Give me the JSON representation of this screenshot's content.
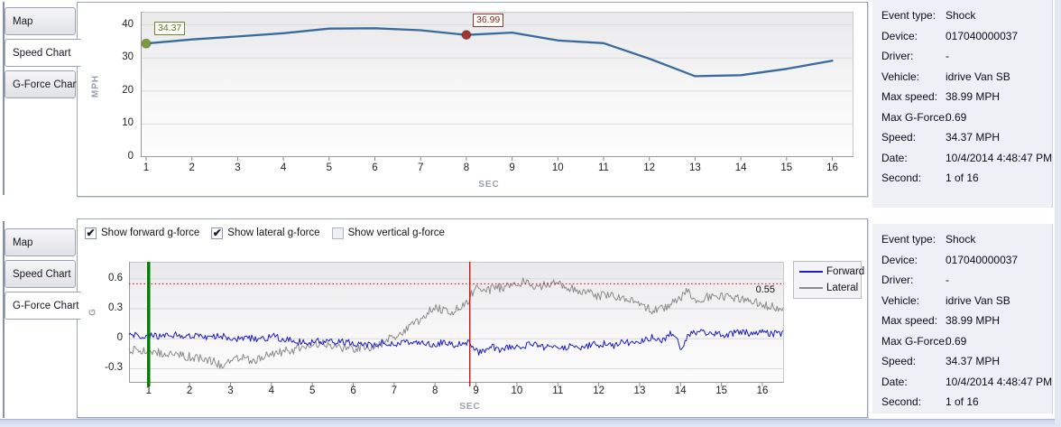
{
  "tabs": [
    {
      "label": "Map"
    },
    {
      "label": "Speed Chart"
    },
    {
      "label": "G-Force Chart"
    }
  ],
  "top_panel": {
    "active_tab": "Speed Chart",
    "active_tab_index": 1
  },
  "bottom_panel": {
    "active_tab": "G-Force Chart",
    "active_tab_index": 2,
    "checkboxes": [
      {
        "label": "Show forward g-force",
        "checked": true
      },
      {
        "label": "Show lateral g-force",
        "checked": true
      },
      {
        "label": "Show vertical g-force",
        "checked": false
      }
    ]
  },
  "info_panel": {
    "rows": [
      {
        "label": "Event type:",
        "value": "Shock"
      },
      {
        "label": "Device:",
        "value": "017040000037"
      },
      {
        "label": "Driver:",
        "value": "-"
      },
      {
        "label": "Vehicle:",
        "value": "idrive Van SB"
      },
      {
        "label": "Max speed:",
        "value": "38.99 MPH"
      },
      {
        "label": "Max G-Force:",
        "value": "0.69"
      },
      {
        "label": "Speed:",
        "value": "34.37 MPH"
      },
      {
        "label": "Date:",
        "value": "10/4/2014 4:48:47 PM"
      },
      {
        "label": "Second:",
        "value": "1 of 16"
      }
    ]
  },
  "chart_data": [
    {
      "type": "line",
      "title": "Speed Chart",
      "xlabel": "SEC",
      "ylabel": "MPH",
      "x": [
        1,
        2,
        3,
        4,
        5,
        6,
        7,
        8,
        9,
        10,
        11,
        12,
        13,
        14,
        15,
        16
      ],
      "series": [
        {
          "name": "Speed",
          "color": "#3a6b9f",
          "values": [
            34.37,
            35.6,
            36.5,
            37.5,
            38.9,
            38.99,
            38.4,
            36.99,
            37.7,
            35.3,
            34.5,
            29.8,
            24.5,
            24.8,
            26.7,
            29.2
          ]
        }
      ],
      "x_ticks": [
        1,
        2,
        3,
        4,
        5,
        6,
        7,
        8,
        9,
        10,
        11,
        12,
        13,
        14,
        15,
        16
      ],
      "y_ticks": [
        0,
        10,
        20,
        30,
        40
      ],
      "ylim": [
        0,
        44
      ],
      "grid": "horizontal",
      "annotations": [
        {
          "x": 1,
          "y": 34.37,
          "label": "34.37",
          "marker_color": "#7b9b3f"
        },
        {
          "x": 8,
          "y": 36.99,
          "label": "36.99",
          "marker_color": "#a03535"
        }
      ]
    },
    {
      "type": "line",
      "title": "G-Force Chart",
      "xlabel": "SEC",
      "ylabel": "G",
      "x_ticks": [
        1,
        2,
        3,
        4,
        5,
        6,
        7,
        8,
        9,
        10,
        11,
        12,
        13,
        14,
        15,
        16
      ],
      "y_ticks": [
        0.6,
        0.3,
        0,
        -0.3
      ],
      "xlim": [
        0.52,
        16.52
      ],
      "ylim": [
        -0.44,
        0.77
      ],
      "grid": "horizontal",
      "legend_position": "top-right-outside",
      "threshold": {
        "value": 0.55,
        "label": "0.55",
        "color": "#cc0000"
      },
      "marker_lines": [
        {
          "name": "start-marker",
          "x": 1,
          "color": "#008000",
          "width": 3.5
        },
        {
          "name": "event-marker",
          "x": 8.85,
          "color": "#cc0000",
          "width": 1.3
        }
      ],
      "series": [
        {
          "name": "Forward",
          "color": "#1c1cc8",
          "noise": 0.035,
          "seed": 7,
          "envelope": [
            [
              0.52,
              0.05
            ],
            [
              0.8,
              0.01
            ],
            [
              1.0,
              0.03
            ],
            [
              1.3,
              0.02
            ],
            [
              1.6,
              0.04
            ],
            [
              1.9,
              0.02
            ],
            [
              2.2,
              0.03
            ],
            [
              2.5,
              0.01
            ],
            [
              2.8,
              0.03
            ],
            [
              3.1,
              0.0
            ],
            [
              3.4,
              0.02
            ],
            [
              3.7,
              -0.02
            ],
            [
              4.0,
              0.03
            ],
            [
              4.3,
              0.0
            ],
            [
              4.6,
              -0.03
            ],
            [
              4.9,
              -0.04
            ],
            [
              5.2,
              -0.02
            ],
            [
              5.5,
              -0.04
            ],
            [
              5.8,
              -0.03
            ],
            [
              6.1,
              -0.05
            ],
            [
              6.4,
              -0.06
            ],
            [
              6.7,
              -0.04
            ],
            [
              7.0,
              -0.06
            ],
            [
              7.3,
              -0.04
            ],
            [
              7.6,
              -0.05
            ],
            [
              7.9,
              -0.06
            ],
            [
              8.2,
              -0.04
            ],
            [
              8.5,
              -0.06
            ],
            [
              8.8,
              -0.04
            ],
            [
              9.1,
              -0.14
            ],
            [
              9.35,
              -0.07
            ],
            [
              9.6,
              -0.11
            ],
            [
              9.85,
              -0.08
            ],
            [
              10.1,
              -0.1
            ],
            [
              10.35,
              -0.05
            ],
            [
              10.6,
              -0.09
            ],
            [
              10.85,
              -0.07
            ],
            [
              11.1,
              -0.1
            ],
            [
              11.35,
              -0.06
            ],
            [
              11.6,
              -0.09
            ],
            [
              11.85,
              -0.06
            ],
            [
              12.1,
              -0.05
            ],
            [
              12.35,
              -0.07
            ],
            [
              12.6,
              -0.03
            ],
            [
              12.85,
              -0.04
            ],
            [
              13.1,
              -0.01
            ],
            [
              13.35,
              0.02
            ],
            [
              13.6,
              -0.02
            ],
            [
              13.8,
              0.07
            ],
            [
              14.0,
              -0.09
            ],
            [
              14.2,
              0.03
            ],
            [
              14.45,
              0.08
            ],
            [
              14.7,
              0.06
            ],
            [
              14.95,
              0.05
            ],
            [
              15.2,
              0.04
            ],
            [
              15.45,
              0.08
            ],
            [
              15.7,
              0.05
            ],
            [
              15.95,
              0.07
            ],
            [
              16.2,
              0.05
            ],
            [
              16.5,
              0.06
            ]
          ]
        },
        {
          "name": "Lateral",
          "color": "#8a8a8a",
          "noise": 0.045,
          "seed": 13,
          "envelope": [
            [
              0.52,
              -0.1
            ],
            [
              0.8,
              -0.13
            ],
            [
              1.0,
              -0.12
            ],
            [
              1.3,
              -0.14
            ],
            [
              1.6,
              -0.16
            ],
            [
              1.9,
              -0.17
            ],
            [
              2.2,
              -0.19
            ],
            [
              2.5,
              -0.21
            ],
            [
              2.85,
              -0.28
            ],
            [
              3.1,
              -0.2
            ],
            [
              3.3,
              -0.17
            ],
            [
              3.5,
              -0.23
            ],
            [
              3.75,
              -0.18
            ],
            [
              4.0,
              -0.15
            ],
            [
              4.3,
              -0.13
            ],
            [
              4.6,
              -0.11
            ],
            [
              4.9,
              -0.06
            ],
            [
              5.2,
              -0.05
            ],
            [
              5.5,
              -0.07
            ],
            [
              5.8,
              -0.09
            ],
            [
              6.1,
              -0.1
            ],
            [
              6.4,
              -0.08
            ],
            [
              6.7,
              -0.05
            ],
            [
              6.9,
              0.0
            ],
            [
              7.1,
              0.05
            ],
            [
              7.35,
              0.1
            ],
            [
              7.6,
              0.18
            ],
            [
              7.85,
              0.28
            ],
            [
              8.05,
              0.32
            ],
            [
              8.3,
              0.26
            ],
            [
              8.55,
              0.3
            ],
            [
              8.8,
              0.38
            ],
            [
              9.0,
              0.52
            ],
            [
              9.2,
              0.47
            ],
            [
              9.45,
              0.5
            ],
            [
              9.7,
              0.52
            ],
            [
              9.95,
              0.55
            ],
            [
              10.2,
              0.58
            ],
            [
              10.45,
              0.52
            ],
            [
              10.7,
              0.54
            ],
            [
              10.95,
              0.56
            ],
            [
              11.2,
              0.52
            ],
            [
              11.45,
              0.5
            ],
            [
              11.7,
              0.46
            ],
            [
              11.95,
              0.43
            ],
            [
              12.2,
              0.44
            ],
            [
              12.45,
              0.42
            ],
            [
              12.7,
              0.4
            ],
            [
              12.95,
              0.35
            ],
            [
              13.2,
              0.3
            ],
            [
              13.45,
              0.28
            ],
            [
              13.7,
              0.34
            ],
            [
              13.95,
              0.38
            ],
            [
              14.15,
              0.48
            ],
            [
              14.35,
              0.4
            ],
            [
              14.6,
              0.41
            ],
            [
              14.85,
              0.43
            ],
            [
              15.1,
              0.42
            ],
            [
              15.35,
              0.4
            ],
            [
              15.6,
              0.41
            ],
            [
              15.85,
              0.36
            ],
            [
              16.1,
              0.33
            ],
            [
              16.3,
              0.31
            ],
            [
              16.5,
              0.3
            ]
          ]
        }
      ]
    }
  ]
}
